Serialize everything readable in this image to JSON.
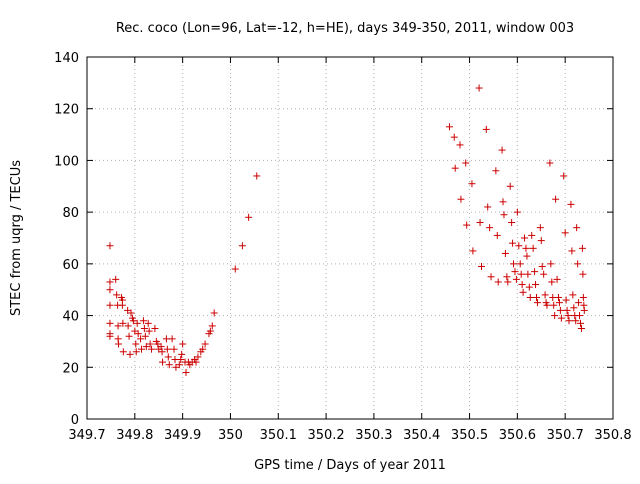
{
  "chart_data": {
    "type": "scatter",
    "title": "Rec. coco (Lon=96, Lat=-12, h=HE), days 349-350, 2011, window 003",
    "xlabel": "GPS time / Days of year 2011",
    "ylabel": "STEC from uqrg / TECUs",
    "xlim": [
      349.7,
      350.8
    ],
    "ylim": [
      0,
      140
    ],
    "xticks": [
      "349.7",
      "349.8",
      "349.9",
      "350",
      "350.1",
      "350.2",
      "350.3",
      "350.4",
      "350.5",
      "350.6",
      "350.7",
      "350.8"
    ],
    "yticks": [
      "0",
      "20",
      "40",
      "60",
      "80",
      "100",
      "120",
      "140"
    ],
    "grid": true,
    "marker": "plus",
    "color": "#cc0000",
    "series": [
      {
        "points": [
          [
            349.748,
            67
          ],
          [
            349.748,
            53
          ],
          [
            349.748,
            50
          ],
          [
            349.748,
            44
          ],
          [
            349.748,
            37
          ],
          [
            349.748,
            33
          ],
          [
            349.748,
            32
          ],
          [
            349.76,
            54
          ],
          [
            349.762,
            48
          ],
          [
            349.764,
            44
          ],
          [
            349.765,
            36
          ],
          [
            349.765,
            31
          ],
          [
            349.766,
            29
          ],
          [
            349.772,
            47
          ],
          [
            349.774,
            46
          ],
          [
            349.774,
            44
          ],
          [
            349.775,
            37
          ],
          [
            349.776,
            26
          ],
          [
            349.785,
            42
          ],
          [
            349.786,
            36
          ],
          [
            349.788,
            32
          ],
          [
            349.79,
            25
          ],
          [
            349.792,
            41
          ],
          [
            349.795,
            39
          ],
          [
            349.797,
            38
          ],
          [
            349.8,
            34
          ],
          [
            349.802,
            29
          ],
          [
            349.803,
            26
          ],
          [
            349.805,
            37
          ],
          [
            349.807,
            33
          ],
          [
            349.812,
            31
          ],
          [
            349.814,
            27
          ],
          [
            349.818,
            38
          ],
          [
            349.82,
            35
          ],
          [
            349.822,
            32
          ],
          [
            349.824,
            28
          ],
          [
            349.828,
            37
          ],
          [
            349.83,
            34
          ],
          [
            349.832,
            29
          ],
          [
            349.835,
            27
          ],
          [
            349.842,
            35
          ],
          [
            349.845,
            30
          ],
          [
            349.848,
            29
          ],
          [
            349.85,
            27
          ],
          [
            349.855,
            28
          ],
          [
            349.857,
            26
          ],
          [
            349.858,
            22
          ],
          [
            349.866,
            31
          ],
          [
            349.868,
            27
          ],
          [
            349.87,
            24
          ],
          [
            349.872,
            21
          ],
          [
            349.878,
            31
          ],
          [
            349.882,
            27
          ],
          [
            349.884,
            23
          ],
          [
            349.886,
            20
          ],
          [
            349.893,
            21
          ],
          [
            349.896,
            23
          ],
          [
            349.898,
            25
          ],
          [
            349.9,
            29
          ],
          [
            349.905,
            22
          ],
          [
            349.907,
            18
          ],
          [
            349.912,
            22
          ],
          [
            349.915,
            21
          ],
          [
            349.92,
            22
          ],
          [
            349.925,
            23
          ],
          [
            349.928,
            22
          ],
          [
            349.932,
            24
          ],
          [
            349.938,
            26
          ],
          [
            349.942,
            27
          ],
          [
            349.947,
            29
          ],
          [
            349.955,
            33
          ],
          [
            349.958,
            34
          ],
          [
            349.962,
            36
          ],
          [
            349.966,
            41
          ],
          [
            350.01,
            58
          ],
          [
            350.025,
            67
          ],
          [
            350.038,
            78
          ],
          [
            350.055,
            94
          ]
        ]
      },
      {
        "points": [
          [
            350.458,
            113
          ],
          [
            350.468,
            109
          ],
          [
            350.47,
            97
          ],
          [
            350.48,
            106
          ],
          [
            350.482,
            85
          ],
          [
            350.492,
            99
          ],
          [
            350.494,
            75
          ],
          [
            350.505,
            91
          ],
          [
            350.507,
            65
          ],
          [
            350.52,
            128
          ],
          [
            350.522,
            76
          ],
          [
            350.525,
            59
          ],
          [
            350.535,
            112
          ],
          [
            350.538,
            82
          ],
          [
            350.542,
            74
          ],
          [
            350.545,
            55
          ],
          [
            350.555,
            96
          ],
          [
            350.558,
            71
          ],
          [
            350.56,
            53
          ],
          [
            350.568,
            104
          ],
          [
            350.57,
            84
          ],
          [
            350.572,
            79
          ],
          [
            350.575,
            64
          ],
          [
            350.578,
            55
          ],
          [
            350.58,
            53
          ],
          [
            350.585,
            90
          ],
          [
            350.588,
            76
          ],
          [
            350.59,
            68
          ],
          [
            350.592,
            60
          ],
          [
            350.595,
            57
          ],
          [
            350.598,
            54
          ],
          [
            350.6,
            80
          ],
          [
            350.603,
            67
          ],
          [
            350.606,
            60
          ],
          [
            350.608,
            56
          ],
          [
            350.61,
            52
          ],
          [
            350.612,
            49
          ],
          [
            350.615,
            70
          ],
          [
            350.618,
            66
          ],
          [
            350.62,
            63
          ],
          [
            350.622,
            56
          ],
          [
            350.625,
            51
          ],
          [
            350.627,
            47
          ],
          [
            350.63,
            71
          ],
          [
            350.633,
            66
          ],
          [
            350.636,
            57
          ],
          [
            350.638,
            52
          ],
          [
            350.64,
            47
          ],
          [
            350.642,
            45
          ],
          [
            350.648,
            74
          ],
          [
            350.65,
            69
          ],
          [
            350.652,
            59
          ],
          [
            350.655,
            56
          ],
          [
            350.658,
            48
          ],
          [
            350.66,
            45
          ],
          [
            350.662,
            44
          ],
          [
            350.668,
            99
          ],
          [
            350.67,
            60
          ],
          [
            350.672,
            53
          ],
          [
            350.674,
            47
          ],
          [
            350.676,
            44
          ],
          [
            350.678,
            40
          ],
          [
            350.68,
            85
          ],
          [
            350.683,
            54
          ],
          [
            350.686,
            47
          ],
          [
            350.688,
            45
          ],
          [
            350.69,
            42
          ],
          [
            350.692,
            39
          ],
          [
            350.697,
            94
          ],
          [
            350.7,
            72
          ],
          [
            350.702,
            46
          ],
          [
            350.704,
            42
          ],
          [
            350.706,
            40
          ],
          [
            350.708,
            38
          ],
          [
            350.712,
            83
          ],
          [
            350.714,
            65
          ],
          [
            350.716,
            48
          ],
          [
            350.718,
            43
          ],
          [
            350.72,
            40
          ],
          [
            350.722,
            38
          ],
          [
            350.724,
            74
          ],
          [
            350.726,
            60
          ],
          [
            350.728,
            45
          ],
          [
            350.73,
            40
          ],
          [
            350.732,
            37
          ],
          [
            350.734,
            35
          ],
          [
            350.736,
            66
          ],
          [
            350.737,
            56
          ],
          [
            350.738,
            47
          ],
          [
            350.739,
            44
          ],
          [
            350.74,
            42
          ]
        ]
      }
    ]
  }
}
